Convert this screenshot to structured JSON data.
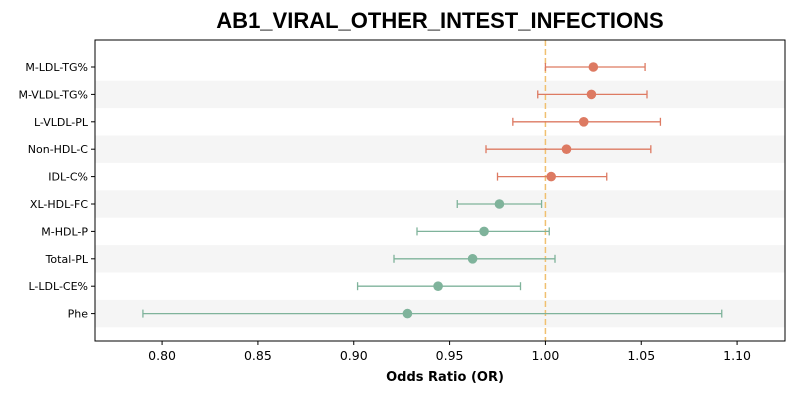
{
  "chart_data": {
    "type": "forest",
    "title": "AB1_VIRAL_OTHER_INTEST_INFECTIONS",
    "xlabel": "Odds Ratio (OR)",
    "xlim": [
      0.765,
      1.125
    ],
    "xticks": [
      0.8,
      0.85,
      0.9,
      0.95,
      1.0,
      1.05,
      1.1
    ],
    "xtick_labels": [
      "0.80",
      "0.85",
      "0.90",
      "0.95",
      "1.00",
      "1.05",
      "1.10"
    ],
    "reference_line": 1.0,
    "reference_color": "#f0c070",
    "positive_color": "#dd7a62",
    "negative_color": "#7fb39b",
    "band_color": "#f5f5f5",
    "rows": [
      {
        "label": "M-LDL-TG%",
        "or": 1.025,
        "lo": 1.0,
        "hi": 1.052
      },
      {
        "label": "M-VLDL-TG%",
        "or": 1.024,
        "lo": 0.996,
        "hi": 1.053
      },
      {
        "label": "L-VLDL-PL",
        "or": 1.02,
        "lo": 0.983,
        "hi": 1.06
      },
      {
        "label": "Non-HDL-C",
        "or": 1.011,
        "lo": 0.969,
        "hi": 1.055
      },
      {
        "label": "IDL-C%",
        "or": 1.003,
        "lo": 0.975,
        "hi": 1.032
      },
      {
        "label": "XL-HDL-FC",
        "or": 0.976,
        "lo": 0.954,
        "hi": 0.998
      },
      {
        "label": "M-HDL-P",
        "or": 0.968,
        "lo": 0.933,
        "hi": 1.002
      },
      {
        "label": "Total-PL",
        "or": 0.962,
        "lo": 0.921,
        "hi": 1.005
      },
      {
        "label": "L-LDL-CE%",
        "or": 0.944,
        "lo": 0.902,
        "hi": 0.987
      },
      {
        "label": "Phe",
        "or": 0.928,
        "lo": 0.79,
        "hi": 1.092
      }
    ]
  }
}
